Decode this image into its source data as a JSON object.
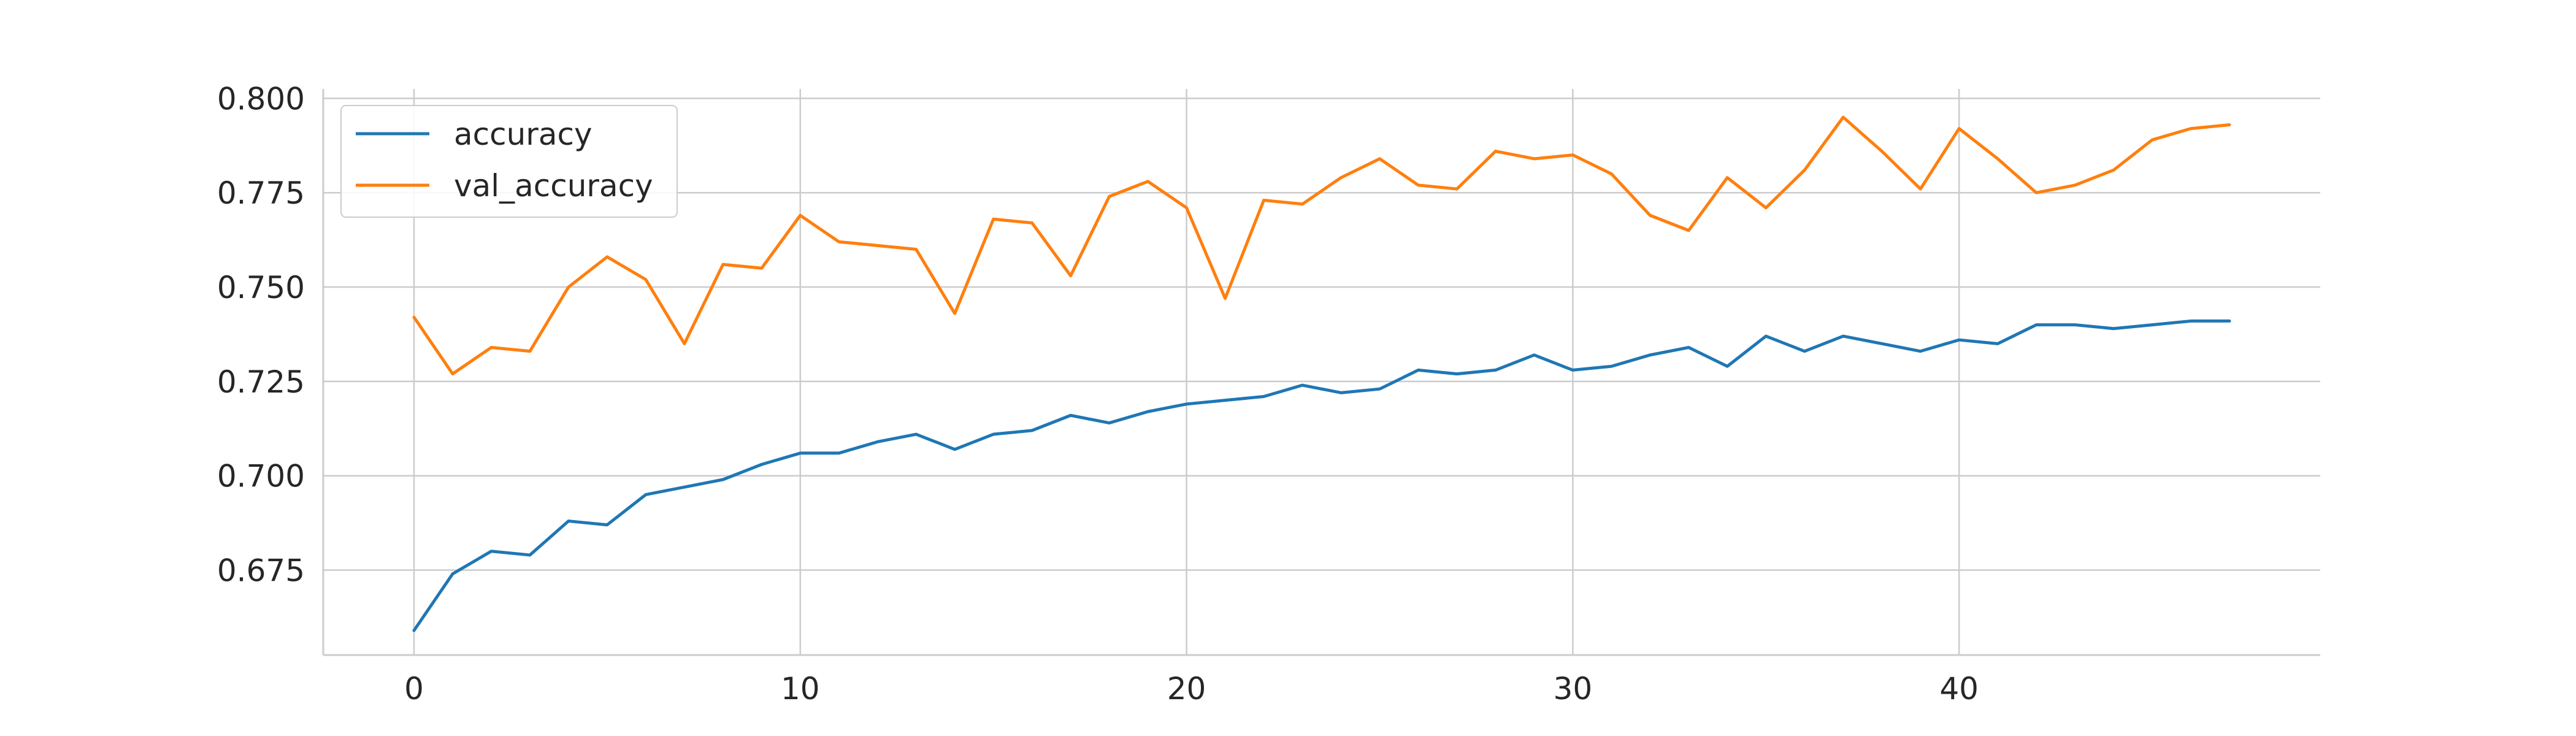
{
  "chart_data": {
    "type": "line",
    "title": "",
    "xlabel": "",
    "ylabel": "",
    "xlim": [
      -2.35,
      49.35
    ],
    "ylim": [
      0.6525,
      0.8025
    ],
    "xticks": [
      0,
      10,
      20,
      30,
      40
    ],
    "xtick_labels": [
      "0",
      "10",
      "20",
      "30",
      "40"
    ],
    "yticks": [
      0.675,
      0.7,
      0.725,
      0.75,
      0.775,
      0.8
    ],
    "ytick_labels": [
      "0.675",
      "0.700",
      "0.725",
      "0.750",
      "0.775",
      "0.800"
    ],
    "grid": true,
    "legend_position": "top-left",
    "x": [
      0,
      1,
      2,
      3,
      4,
      5,
      6,
      7,
      8,
      9,
      10,
      11,
      12,
      13,
      14,
      15,
      16,
      17,
      18,
      19,
      20,
      21,
      22,
      23,
      24,
      25,
      26,
      27,
      28,
      29,
      30,
      31,
      32,
      33,
      34,
      35,
      36,
      37,
      38,
      39,
      40,
      41,
      42,
      43,
      44,
      45,
      46,
      47
    ],
    "series": [
      {
        "name": "accuracy",
        "color": "#1f77b4",
        "values": [
          0.659,
          0.674,
          0.68,
          0.679,
          0.688,
          0.687,
          0.695,
          0.697,
          0.699,
          0.703,
          0.706,
          0.706,
          0.709,
          0.711,
          0.707,
          0.711,
          0.712,
          0.716,
          0.714,
          0.717,
          0.719,
          0.72,
          0.721,
          0.724,
          0.722,
          0.723,
          0.728,
          0.727,
          0.728,
          0.732,
          0.728,
          0.729,
          0.732,
          0.734,
          0.729,
          0.737,
          0.733,
          0.737,
          0.735,
          0.733,
          0.736,
          0.735,
          0.74,
          0.74,
          0.739,
          0.74,
          0.741,
          0.741
        ]
      },
      {
        "name": "val_accuracy",
        "color": "#ff7f0e",
        "values": [
          0.742,
          0.727,
          0.734,
          0.733,
          0.75,
          0.758,
          0.752,
          0.735,
          0.756,
          0.755,
          0.769,
          0.762,
          0.761,
          0.76,
          0.743,
          0.768,
          0.767,
          0.753,
          0.774,
          0.778,
          0.771,
          0.747,
          0.773,
          0.772,
          0.779,
          0.784,
          0.777,
          0.776,
          0.786,
          0.784,
          0.785,
          0.78,
          0.769,
          0.765,
          0.779,
          0.771,
          0.781,
          0.795,
          0.786,
          0.776,
          0.792,
          0.784,
          0.775,
          0.777,
          0.781,
          0.789,
          0.792,
          0.793
        ]
      }
    ]
  }
}
